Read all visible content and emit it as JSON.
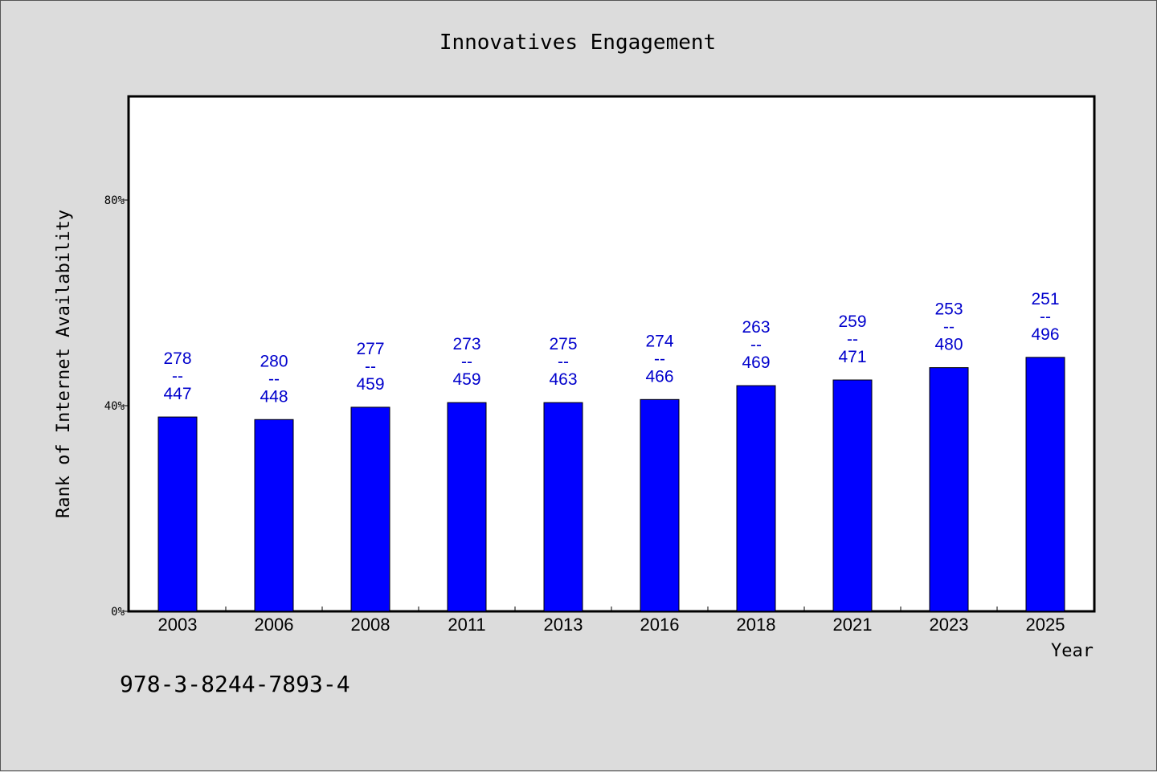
{
  "chart_data": {
    "type": "bar",
    "title": "Innovatives Engagement",
    "xlabel": "Year",
    "ylabel": "Rank of Internet Availability",
    "categories": [
      "2003",
      "2006",
      "2008",
      "2011",
      "2013",
      "2016",
      "2018",
      "2021",
      "2023",
      "2025"
    ],
    "series": [
      {
        "values": [
          0.378,
          0.373,
          0.397,
          0.406,
          0.406,
          0.412,
          0.439,
          0.45,
          0.474,
          0.494
        ]
      }
    ],
    "data_labels": [
      [
        "278",
        "--",
        "447"
      ],
      [
        "280",
        "--",
        "448"
      ],
      [
        "277",
        "--",
        "459"
      ],
      [
        "273",
        "--",
        "459"
      ],
      [
        "275",
        "--",
        "463"
      ],
      [
        "274",
        "--",
        "466"
      ],
      [
        "263",
        "--",
        "469"
      ],
      [
        "259",
        "--",
        "471"
      ],
      [
        "253",
        "--",
        "480"
      ],
      [
        "251",
        "--",
        "496"
      ]
    ],
    "ylim": [
      0,
      1.0
    ],
    "yticks": [
      {
        "value": 0,
        "label": "0%"
      },
      {
        "value": 0.4,
        "label": "40%"
      },
      {
        "value": 0.8,
        "label": "80%"
      }
    ],
    "grid": false,
    "legend": "none",
    "colors": {
      "bar": "#0000ff",
      "label": "#0000cc",
      "background": "#dcdcdc",
      "plot": "#ffffff"
    }
  },
  "footer": {
    "isbn": "978-3-8244-7893-4"
  }
}
